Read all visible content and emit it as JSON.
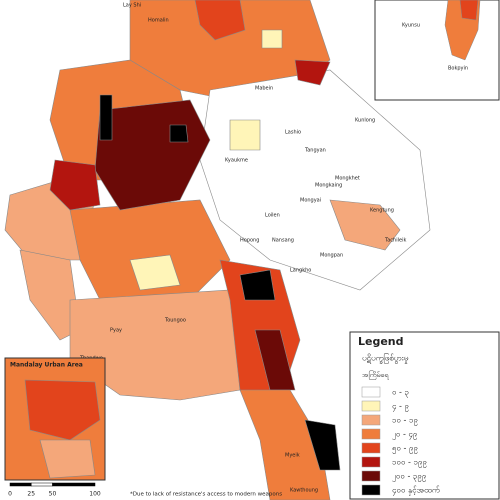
{
  "map": {
    "labels": [
      "Lay Shi",
      "Homalin",
      "Mabein",
      "Tangyan",
      "Mongkaing",
      "Lashio",
      "Kunlong",
      "Mongyai",
      "Mongkhet",
      "Kengtung",
      "Tachileik",
      "Langkho",
      "Mongpan",
      "Loilen",
      "Nansang",
      "Hopong",
      "Kyaukme",
      "Thandwe",
      "Toungoo",
      "Pyay",
      "Myeik",
      "Kawthoung"
    ]
  },
  "inset_top": {
    "labels": [
      "Kyunsu",
      "Bokpyin"
    ]
  },
  "inset_mandalay": {
    "title": "Mandalay Urban Area"
  },
  "legend": {
    "title": "Legend",
    "subtitle": "ပဋိပက္ခဖြစ်ပွားမှု",
    "caption": "အကြိမ်ရေ",
    "items": [
      {
        "label": "၀ - ၃",
        "color": "#ffffff"
      },
      {
        "label": "၄ - ၉",
        "color": "#fff5b8"
      },
      {
        "label": "၁၀ - ၁၉",
        "color": "#f4a77a"
      },
      {
        "label": "၂၀ - ၄၉",
        "color": "#ef7d3c"
      },
      {
        "label": "၅၀ - ၉၉",
        "color": "#e2441c"
      },
      {
        "label": "၁၀၀ - ၁၉၉",
        "color": "#b3150f"
      },
      {
        "label": "၂၀၀ - ၃၉၉",
        "color": "#6b0a07"
      },
      {
        "label": "၄၀၀ နှင့်အထက်",
        "color": "#000000"
      }
    ]
  },
  "scale_bar": {
    "ticks": [
      0,
      25,
      50,
      100
    ]
  },
  "footnote": "*Due to lack of resistance's access to modern weapons"
}
